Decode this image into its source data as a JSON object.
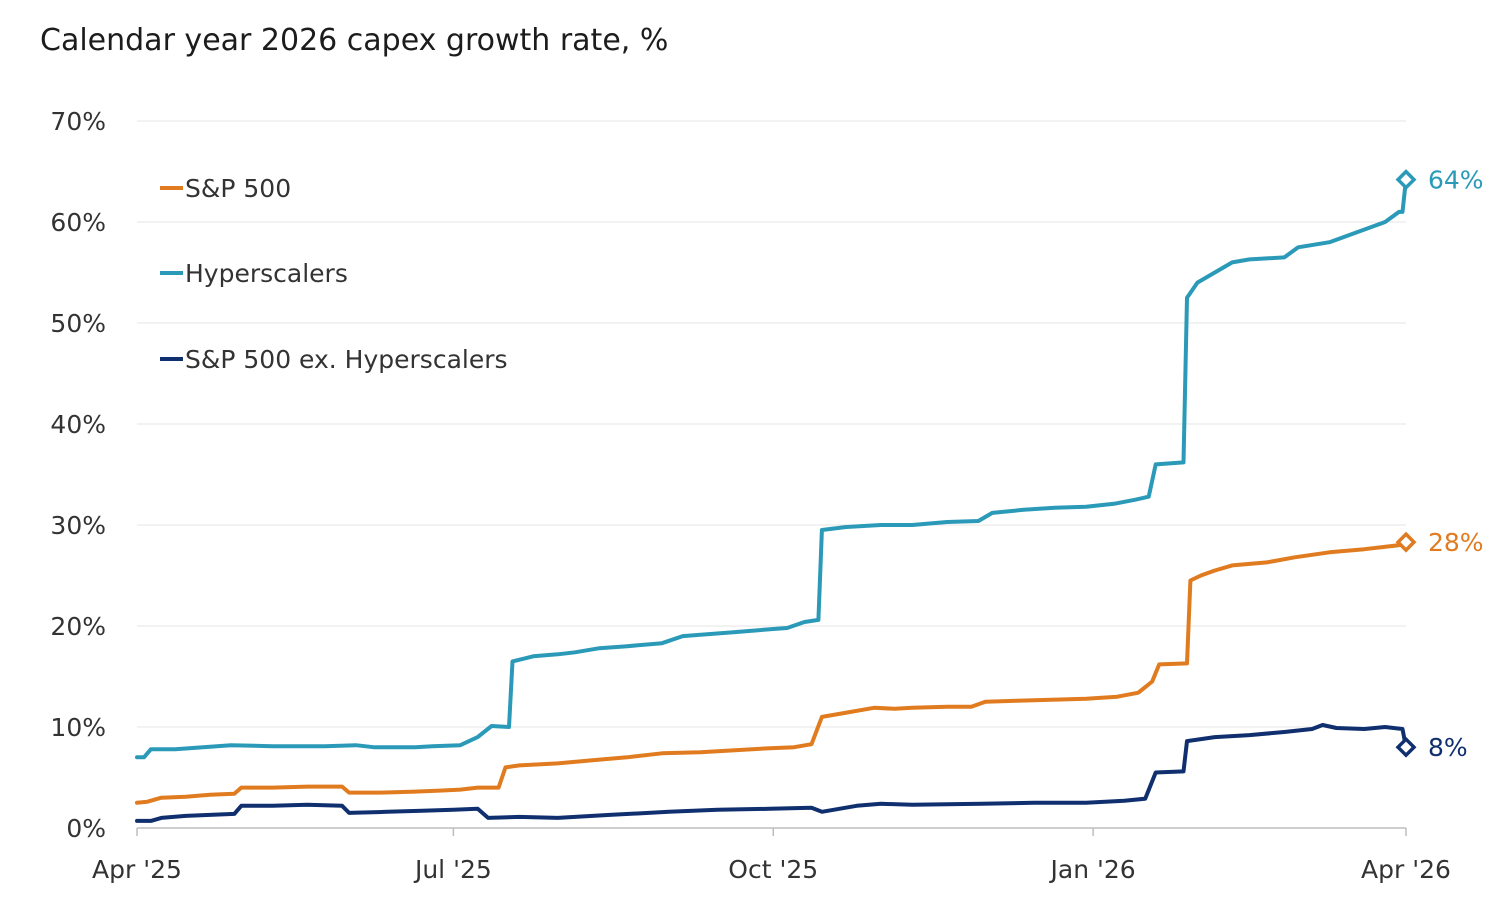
{
  "chart_data": {
    "type": "line",
    "title": "Calendar year 2026 capex growth rate, %",
    "xlabel": "",
    "ylabel": "",
    "x_range": [
      "2025-04-01",
      "2026-04-01"
    ],
    "ylim": [
      0,
      70
    ],
    "y_ticks": [
      0,
      10,
      20,
      30,
      40,
      50,
      60,
      70
    ],
    "y_tick_labels": [
      "0%",
      "10%",
      "20%",
      "30%",
      "40%",
      "50%",
      "60%",
      "70%"
    ],
    "x_ticks": [
      "2025-04-01",
      "2025-07-01",
      "2025-10-01",
      "2026-01-01",
      "2026-04-01"
    ],
    "x_tick_labels": [
      "Apr '25",
      "Jul '25",
      "Oct '25",
      "Jan '26",
      "Apr '26"
    ],
    "grid": true,
    "legend_position": "top-left",
    "series": [
      {
        "name": "S&P 500",
        "color": "#e07b1f",
        "end_label": "28%",
        "end_value": 28.3,
        "points": [
          [
            "2025-04-01",
            2.5
          ],
          [
            "2025-04-04",
            2.6
          ],
          [
            "2025-04-08",
            3.0
          ],
          [
            "2025-04-15",
            3.1
          ],
          [
            "2025-04-22",
            3.3
          ],
          [
            "2025-04-29",
            3.4
          ],
          [
            "2025-05-01",
            4.0
          ],
          [
            "2025-05-10",
            4.0
          ],
          [
            "2025-05-20",
            4.1
          ],
          [
            "2025-05-30",
            4.1
          ],
          [
            "2025-06-01",
            3.5
          ],
          [
            "2025-06-10",
            3.5
          ],
          [
            "2025-06-20",
            3.6
          ],
          [
            "2025-06-27",
            3.7
          ],
          [
            "2025-07-03",
            3.8
          ],
          [
            "2025-07-08",
            4.0
          ],
          [
            "2025-07-14",
            4.0
          ],
          [
            "2025-07-16",
            6.0
          ],
          [
            "2025-07-20",
            6.2
          ],
          [
            "2025-07-31",
            6.4
          ],
          [
            "2025-08-10",
            6.7
          ],
          [
            "2025-08-20",
            7.0
          ],
          [
            "2025-08-30",
            7.4
          ],
          [
            "2025-09-10",
            7.5
          ],
          [
            "2025-09-20",
            7.7
          ],
          [
            "2025-09-30",
            7.9
          ],
          [
            "2025-10-07",
            8.0
          ],
          [
            "2025-10-12",
            8.3
          ],
          [
            "2025-10-15",
            11.0
          ],
          [
            "2025-10-20",
            11.3
          ],
          [
            "2025-10-30",
            11.9
          ],
          [
            "2025-11-05",
            11.8
          ],
          [
            "2025-11-10",
            11.9
          ],
          [
            "2025-11-20",
            12.0
          ],
          [
            "2025-11-27",
            12.0
          ],
          [
            "2025-12-01",
            12.5
          ],
          [
            "2025-12-10",
            12.6
          ],
          [
            "2025-12-20",
            12.7
          ],
          [
            "2025-12-30",
            12.8
          ],
          [
            "2026-01-08",
            13.0
          ],
          [
            "2026-01-14",
            13.4
          ],
          [
            "2026-01-18",
            14.5
          ],
          [
            "2026-01-20",
            16.2
          ],
          [
            "2026-01-28",
            16.3
          ],
          [
            "2026-01-29",
            24.5
          ],
          [
            "2026-02-01",
            25.0
          ],
          [
            "2026-02-05",
            25.5
          ],
          [
            "2026-02-10",
            26.0
          ],
          [
            "2026-02-20",
            26.3
          ],
          [
            "2026-02-28",
            26.8
          ],
          [
            "2026-03-10",
            27.3
          ],
          [
            "2026-03-20",
            27.6
          ],
          [
            "2026-03-30",
            28.0
          ],
          [
            "2026-04-01",
            28.3
          ]
        ]
      },
      {
        "name": "Hyperscalers",
        "color": "#2a9ab8",
        "end_label": "64%",
        "end_value": 64.2,
        "points": [
          [
            "2025-04-01",
            7.0
          ],
          [
            "2025-04-03",
            7.0
          ],
          [
            "2025-04-05",
            7.8
          ],
          [
            "2025-04-12",
            7.8
          ],
          [
            "2025-04-20",
            8.0
          ],
          [
            "2025-04-28",
            8.2
          ],
          [
            "2025-05-10",
            8.1
          ],
          [
            "2025-05-25",
            8.1
          ],
          [
            "2025-06-03",
            8.2
          ],
          [
            "2025-06-08",
            8.0
          ],
          [
            "2025-06-20",
            8.0
          ],
          [
            "2025-06-25",
            8.1
          ],
          [
            "2025-07-03",
            8.2
          ],
          [
            "2025-07-08",
            9.0
          ],
          [
            "2025-07-12",
            10.1
          ],
          [
            "2025-07-17",
            10.0
          ],
          [
            "2025-07-18",
            16.5
          ],
          [
            "2025-07-24",
            17.0
          ],
          [
            "2025-07-31",
            17.2
          ],
          [
            "2025-08-05",
            17.4
          ],
          [
            "2025-08-12",
            17.8
          ],
          [
            "2025-08-20",
            18.0
          ],
          [
            "2025-08-30",
            18.3
          ],
          [
            "2025-09-05",
            19.0
          ],
          [
            "2025-09-20",
            19.4
          ],
          [
            "2025-10-01",
            19.7
          ],
          [
            "2025-10-05",
            19.8
          ],
          [
            "2025-10-10",
            20.4
          ],
          [
            "2025-10-14",
            20.6
          ],
          [
            "2025-10-15",
            29.5
          ],
          [
            "2025-10-22",
            29.8
          ],
          [
            "2025-11-01",
            30.0
          ],
          [
            "2025-11-10",
            30.0
          ],
          [
            "2025-11-20",
            30.3
          ],
          [
            "2025-11-29",
            30.4
          ],
          [
            "2025-12-03",
            31.2
          ],
          [
            "2025-12-12",
            31.5
          ],
          [
            "2025-12-21",
            31.7
          ],
          [
            "2025-12-30",
            31.8
          ],
          [
            "2026-01-07",
            32.1
          ],
          [
            "2026-01-13",
            32.5
          ],
          [
            "2026-01-17",
            32.8
          ],
          [
            "2026-01-19",
            36.0
          ],
          [
            "2026-01-27",
            36.2
          ],
          [
            "2026-01-28",
            52.5
          ],
          [
            "2026-01-31",
            54.0
          ],
          [
            "2026-02-05",
            55.0
          ],
          [
            "2026-02-10",
            56.0
          ],
          [
            "2026-02-15",
            56.3
          ],
          [
            "2026-02-25",
            56.5
          ],
          [
            "2026-03-01",
            57.5
          ],
          [
            "2026-03-10",
            58.0
          ],
          [
            "2026-03-18",
            59.0
          ],
          [
            "2026-03-26",
            60.0
          ],
          [
            "2026-03-30",
            61.0
          ],
          [
            "2026-03-31",
            61.0
          ],
          [
            "2026-04-01",
            64.2
          ]
        ]
      },
      {
        "name": "S&P 500 ex. Hyperscalers",
        "color": "#0f2f6e",
        "end_label": "8%",
        "end_value": 8.0,
        "points": [
          [
            "2025-04-01",
            0.7
          ],
          [
            "2025-04-05",
            0.7
          ],
          [
            "2025-04-08",
            1.0
          ],
          [
            "2025-04-15",
            1.2
          ],
          [
            "2025-04-22",
            1.3
          ],
          [
            "2025-04-29",
            1.4
          ],
          [
            "2025-05-01",
            2.2
          ],
          [
            "2025-05-10",
            2.2
          ],
          [
            "2025-05-20",
            2.3
          ],
          [
            "2025-05-30",
            2.2
          ],
          [
            "2025-06-01",
            1.5
          ],
          [
            "2025-06-12",
            1.6
          ],
          [
            "2025-06-22",
            1.7
          ],
          [
            "2025-07-01",
            1.8
          ],
          [
            "2025-07-08",
            1.9
          ],
          [
            "2025-07-11",
            1.0
          ],
          [
            "2025-07-20",
            1.1
          ],
          [
            "2025-07-31",
            1.0
          ],
          [
            "2025-08-15",
            1.3
          ],
          [
            "2025-09-01",
            1.6
          ],
          [
            "2025-09-15",
            1.8
          ],
          [
            "2025-09-30",
            1.9
          ],
          [
            "2025-10-12",
            2.0
          ],
          [
            "2025-10-15",
            1.6
          ],
          [
            "2025-10-25",
            2.2
          ],
          [
            "2025-11-01",
            2.4
          ],
          [
            "2025-11-10",
            2.3
          ],
          [
            "2025-11-30",
            2.4
          ],
          [
            "2025-12-15",
            2.5
          ],
          [
            "2025-12-30",
            2.5
          ],
          [
            "2026-01-10",
            2.7
          ],
          [
            "2026-01-16",
            2.9
          ],
          [
            "2026-01-19",
            5.5
          ],
          [
            "2026-01-27",
            5.6
          ],
          [
            "2026-01-28",
            8.6
          ],
          [
            "2026-02-05",
            9.0
          ],
          [
            "2026-02-15",
            9.2
          ],
          [
            "2026-02-25",
            9.5
          ],
          [
            "2026-03-05",
            9.8
          ],
          [
            "2026-03-08",
            10.2
          ],
          [
            "2026-03-12",
            9.9
          ],
          [
            "2026-03-20",
            9.8
          ],
          [
            "2026-03-26",
            10.0
          ],
          [
            "2026-03-31",
            9.8
          ],
          [
            "2026-04-01",
            8.0
          ]
        ]
      }
    ]
  }
}
